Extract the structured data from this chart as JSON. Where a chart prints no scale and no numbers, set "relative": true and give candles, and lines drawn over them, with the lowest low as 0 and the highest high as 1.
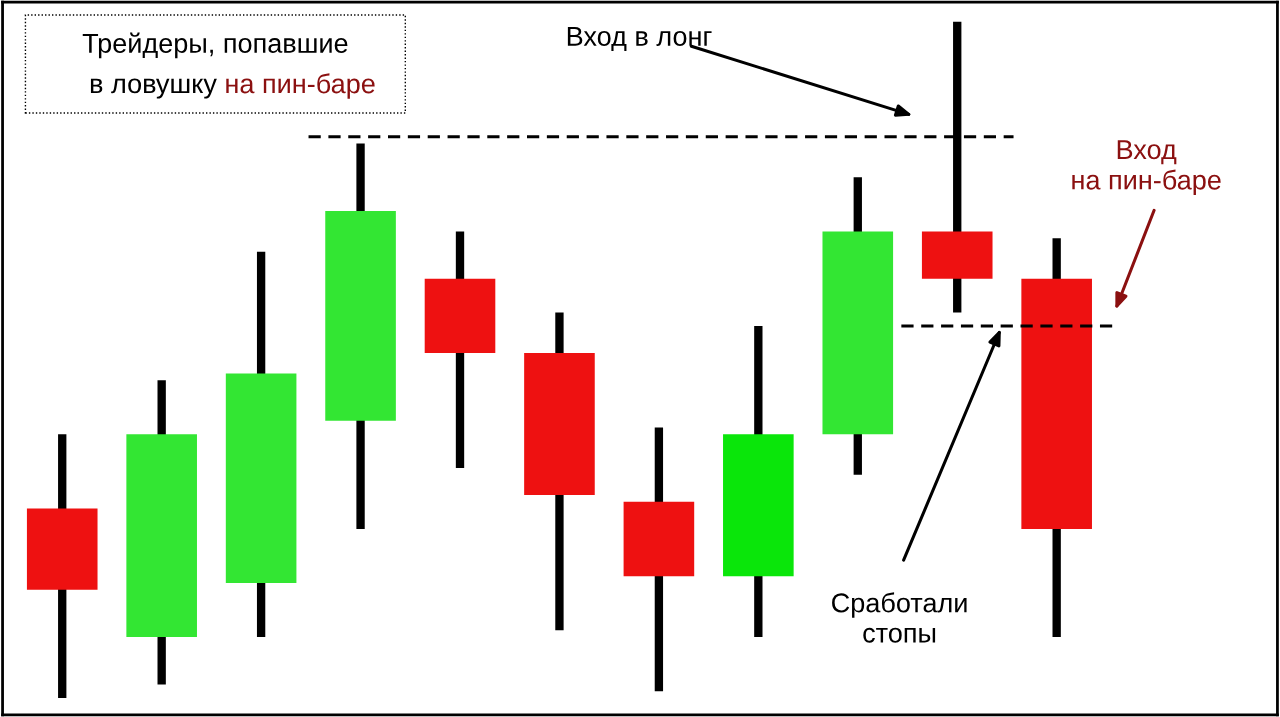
{
  "chart_data": {
    "type": "candlestick",
    "title": "Трейдеры, попавшие в ловушку на пин-баре",
    "relative": true,
    "tick_labels": false,
    "categories": [
      null,
      null,
      null,
      null,
      null,
      null,
      null,
      null,
      null,
      null,
      null
    ],
    "ohlc": [
      [
        0.28,
        0.39,
        0,
        0.16
      ],
      [
        0.09,
        0.47,
        0.02,
        0.39
      ],
      [
        0.17,
        0.66,
        0.09,
        0.48
      ],
      [
        0.41,
        0.82,
        0.25,
        0.72
      ],
      [
        0.62,
        0.69,
        0.34,
        0.51
      ],
      [
        0.51,
        0.57,
        0.1,
        0.3
      ],
      [
        0.29,
        0.4,
        0.01,
        0.18
      ],
      [
        0.18,
        0.55,
        0.09,
        0.39
      ],
      [
        0.39,
        0.77,
        0.33,
        0.69
      ],
      [
        0.69,
        1,
        0.57,
        0.62
      ],
      [
        0.62,
        0.68,
        0.09,
        0.25
      ]
    ],
    "colors": [
      "#ee1111",
      "#33e633",
      "#33e633",
      "#33e633",
      "#ee1111",
      "#ee1111",
      "#ee1111",
      "#0ae60a",
      "#33e633",
      "#ee1111",
      "#ee1111"
    ],
    "ref_lines": [
      {
        "axis": "y",
        "value": 0.83,
        "color": "#000000",
        "line_style": "dashed"
      },
      {
        "axis": "y",
        "value": 0.55,
        "color": "#000000",
        "line_style": "dashed"
      }
    ],
    "annotations": [
      "Вход в лонг",
      "Вход\nна пин-баре",
      "Сработали\nстопы"
    ]
  }
}
